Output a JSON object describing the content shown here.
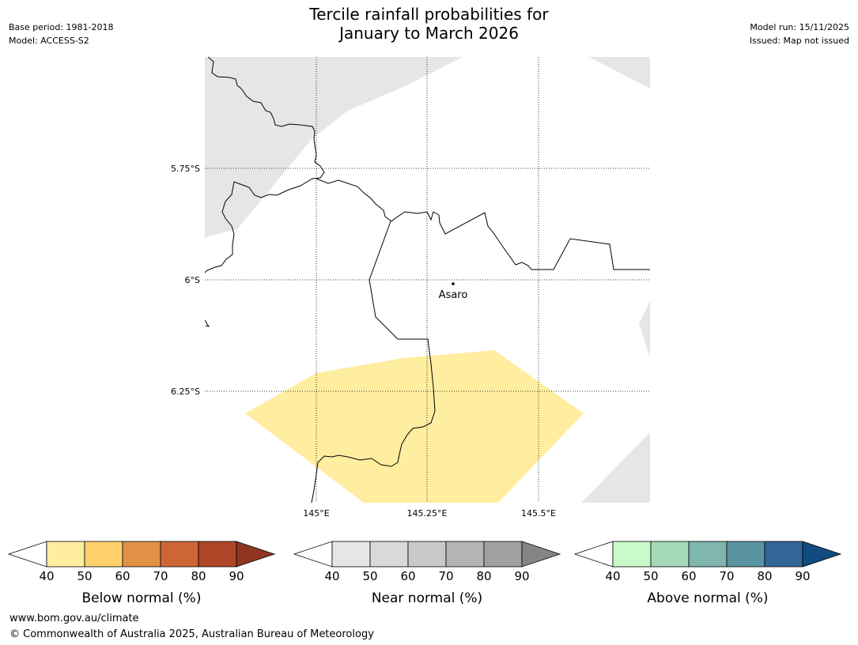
{
  "header": {
    "title_line1": "Tercile rainfall probabilities for",
    "title_line2": "January to March 2026",
    "base_period": "Base period: 1981-2018",
    "model": "Model: ACCESS-S2",
    "model_run": "Model run: 15/11/2025",
    "issued": "Issued: Map not issued"
  },
  "map": {
    "lat_labels": [
      "5.75°S",
      "6°S",
      "6.25°S"
    ],
    "lon_labels": [
      "145°E",
      "145.25°E",
      "145.5°E"
    ],
    "place_label": "Asaro",
    "colors": {
      "near_normal_zone": "#e6e6e6",
      "below_normal_zone": "#ffeda0",
      "border": "#000000"
    }
  },
  "legends": [
    {
      "title": "Below normal (%)",
      "ticks": [
        "40",
        "50",
        "60",
        "70",
        "80",
        "90"
      ],
      "colors": [
        "#ffffff",
        "#ffeda0",
        "#fed06a",
        "#e09146",
        "#cc6735",
        "#ae4628",
        "#8f3522"
      ]
    },
    {
      "title": "Near normal (%)",
      "ticks": [
        "40",
        "50",
        "60",
        "70",
        "80",
        "90"
      ],
      "colors": [
        "#ffffff",
        "#e6e6e6",
        "#d9d9d9",
        "#c9c9c9",
        "#b4b4b4",
        "#a0a0a0",
        "#858585"
      ]
    },
    {
      "title": "Above normal (%)",
      "ticks": [
        "40",
        "50",
        "60",
        "70",
        "80",
        "90"
      ],
      "colors": [
        "#ffffff",
        "#c8fbc8",
        "#a3d9b9",
        "#7fb6ad",
        "#5993a1",
        "#346596",
        "#114b80"
      ]
    }
  ],
  "footer": {
    "url": "www.bom.gov.au/climate",
    "copyright": "© Commonwealth of Australia 2025, Australian Bureau of Meteorology"
  }
}
